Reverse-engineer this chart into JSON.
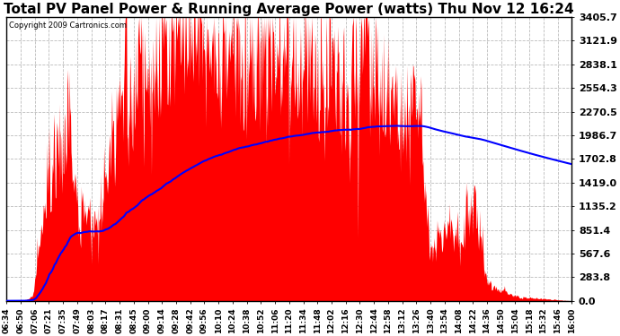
{
  "title": "Total PV Panel Power & Running Average Power (watts) Thu Nov 12 16:24",
  "copyright": "Copyright 2009 Cartronics.com",
  "yticks": [
    0.0,
    283.8,
    567.6,
    851.4,
    1135.2,
    1419.0,
    1702.8,
    1986.7,
    2270.5,
    2554.3,
    2838.1,
    3121.9,
    3405.7
  ],
  "ymax": 3405.7,
  "ymin": 0.0,
  "bar_color": "#ff0000",
  "line_color": "#0000ff",
  "bg_color": "#ffffff",
  "grid_color": "#bbbbbb",
  "title_fontsize": 11,
  "xlabel_fontsize": 6.5,
  "ylabel_fontsize": 8,
  "xtick_labels": [
    "06:34",
    "06:50",
    "07:06",
    "07:21",
    "07:35",
    "07:49",
    "08:03",
    "08:17",
    "08:31",
    "08:45",
    "09:00",
    "09:14",
    "09:28",
    "09:42",
    "09:56",
    "10:10",
    "10:24",
    "10:38",
    "10:52",
    "11:06",
    "11:20",
    "11:34",
    "11:48",
    "12:02",
    "12:16",
    "12:30",
    "12:44",
    "12:58",
    "13:12",
    "13:26",
    "13:40",
    "13:54",
    "14:08",
    "14:22",
    "14:36",
    "14:50",
    "15:04",
    "15:18",
    "15:32",
    "15:46",
    "16:00"
  ]
}
